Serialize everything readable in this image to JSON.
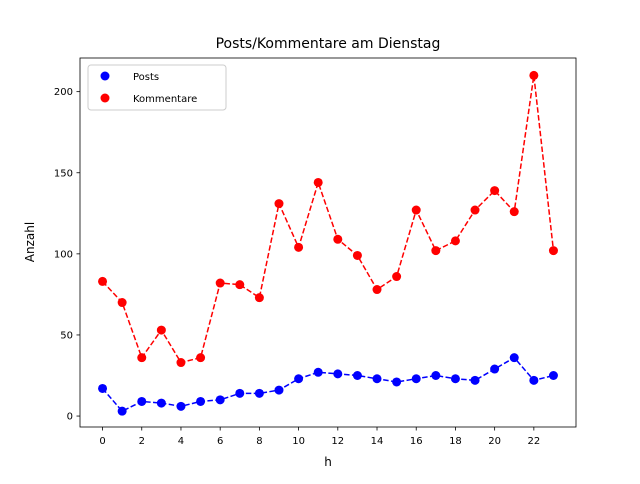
{
  "chart_data": {
    "type": "line",
    "title": "Posts/Kommentare am Dienstag",
    "xlabel": "h",
    "ylabel": "Anzahl",
    "xlim": [
      -1.15,
      24.15
    ],
    "ylim": [
      -6.75,
      220.75
    ],
    "xticks": [
      0,
      2,
      4,
      6,
      8,
      10,
      12,
      14,
      16,
      18,
      20,
      22
    ],
    "yticks": [
      0,
      50,
      100,
      150,
      200
    ],
    "grid": false,
    "legend_position": "top-left",
    "x": [
      0,
      1,
      2,
      3,
      4,
      5,
      6,
      7,
      8,
      9,
      10,
      11,
      12,
      13,
      14,
      15,
      16,
      17,
      18,
      19,
      20,
      21,
      22,
      23
    ],
    "series": [
      {
        "name": "Posts",
        "color": "#0000ff",
        "line_style": "dashed",
        "marker": "circle",
        "values": [
          17,
          3,
          9,
          8,
          6,
          9,
          10,
          14,
          14,
          16,
          23,
          27,
          26,
          25,
          23,
          21,
          23,
          25,
          23,
          22,
          29,
          36,
          22,
          25
        ]
      },
      {
        "name": "Kommentare",
        "color": "#ff0000",
        "line_style": "dashed",
        "marker": "circle",
        "values": [
          83,
          70,
          36,
          53,
          33,
          36,
          82,
          81,
          73,
          131,
          104,
          144,
          109,
          99,
          78,
          86,
          127,
          102,
          108,
          127,
          139,
          126,
          210,
          102
        ]
      }
    ]
  }
}
